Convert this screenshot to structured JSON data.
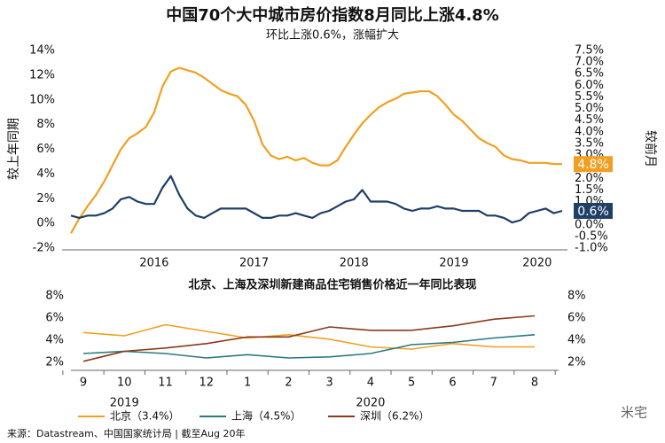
{
  "chart_data": [
    {
      "type": "line",
      "title": "中国70个大中城市房价指数8月同比上涨4.8%",
      "subtitle": "环比上涨0.6%，涨幅扩大",
      "ylabel": "较上年同期",
      "y2label": "较前月",
      "categories": [
        null,
        null,
        null,
        null,
        null,
        null,
        null,
        null,
        null,
        null,
        "2016",
        null,
        null,
        null,
        null,
        null,
        null,
        null,
        null,
        null,
        null,
        null,
        "2017",
        null,
        null,
        null,
        null,
        null,
        null,
        null,
        null,
        null,
        null,
        null,
        "2018",
        null,
        null,
        null,
        null,
        null,
        null,
        null,
        null,
        null,
        null,
        null,
        "2019",
        null,
        null,
        null,
        null,
        null,
        null,
        null,
        null,
        null,
        "2020",
        null,
        null,
        null
      ],
      "series": [
        {
          "name": "较上年同期",
          "color": "#f0a020",
          "axis": "y",
          "values": [
            -0.8,
            0.4,
            1.4,
            2.3,
            3.4,
            4.7,
            6.0,
            6.9,
            7.3,
            7.8,
            9.0,
            11.1,
            12.3,
            12.6,
            12.4,
            12.2,
            11.8,
            11.3,
            10.8,
            10.5,
            10.3,
            9.6,
            8.3,
            6.4,
            5.5,
            5.2,
            5.4,
            5.1,
            5.3,
            4.9,
            4.7,
            4.7,
            5.1,
            6.2,
            7.2,
            8.1,
            8.8,
            9.4,
            9.8,
            10.1,
            10.5,
            10.6,
            10.7,
            10.7,
            10.3,
            9.6,
            8.8,
            8.3,
            7.6,
            6.9,
            6.5,
            6.2,
            5.5,
            5.2,
            5.1,
            4.9,
            4.9,
            4.9,
            4.8,
            4.8
          ],
          "value_labels": [
            null,
            null,
            null,
            null,
            null,
            null,
            null,
            null,
            null,
            null,
            null,
            null,
            null,
            null,
            null,
            null,
            null,
            null,
            null,
            null,
            null,
            null,
            null,
            null,
            null,
            null,
            null,
            null,
            null,
            null,
            null,
            null,
            null,
            null,
            null,
            null,
            null,
            null,
            null,
            null,
            null,
            null,
            null,
            null,
            null,
            null,
            null,
            null,
            null,
            null,
            null,
            null,
            null,
            null,
            null,
            null,
            null,
            null,
            null,
            "4.8%"
          ]
        },
        {
          "name": "较前月",
          "color": "#1f3f66",
          "axis": "y2",
          "values": [
            0.4,
            0.3,
            0.4,
            0.4,
            0.5,
            0.7,
            1.1,
            1.2,
            1.0,
            0.9,
            0.9,
            1.6,
            2.1,
            1.3,
            0.7,
            0.4,
            0.3,
            0.5,
            0.7,
            0.7,
            0.7,
            0.7,
            0.5,
            0.3,
            0.3,
            0.4,
            0.4,
            0.5,
            0.4,
            0.3,
            0.5,
            0.6,
            0.8,
            1.0,
            1.1,
            1.5,
            1.0,
            1.0,
            1.0,
            0.9,
            0.7,
            0.6,
            0.7,
            0.7,
            0.8,
            0.7,
            0.7,
            0.6,
            0.6,
            0.6,
            0.4,
            0.4,
            0.3,
            0.1,
            0.2,
            0.5,
            0.6,
            0.7,
            0.5,
            0.6
          ],
          "value_labels": [
            null,
            null,
            null,
            null,
            null,
            null,
            null,
            null,
            null,
            null,
            null,
            null,
            null,
            null,
            null,
            null,
            null,
            null,
            null,
            null,
            null,
            null,
            null,
            null,
            null,
            null,
            null,
            null,
            null,
            null,
            null,
            null,
            null,
            null,
            null,
            null,
            null,
            null,
            null,
            null,
            null,
            null,
            null,
            null,
            null,
            null,
            null,
            null,
            null,
            null,
            null,
            null,
            null,
            null,
            null,
            null,
            null,
            null,
            null,
            "0.6%"
          ]
        }
      ],
      "ylim": [
        -2,
        14
      ],
      "yticks": [
        {
          "value": -2,
          "label": "-2%"
        },
        {
          "value": 0,
          "label": "0%"
        },
        {
          "value": 2,
          "label": "2%"
        },
        {
          "value": 4,
          "label": "4%"
        },
        {
          "value": 6,
          "label": "6%"
        },
        {
          "value": 8,
          "label": "8%"
        },
        {
          "value": 10,
          "label": "10%"
        },
        {
          "value": 12,
          "label": "12%"
        },
        {
          "value": 14,
          "label": "14%"
        }
      ],
      "y2lim": [
        -1,
        7.5
      ],
      "y2ticks": [
        {
          "value": -1,
          "label": "-1.0%"
        },
        {
          "value": -0.5,
          "label": "-0.5%"
        },
        {
          "value": 0,
          "label": "0.0%"
        },
        {
          "value": 0.5,
          "label": "0.5%"
        },
        {
          "value": 1,
          "label": "1.0%"
        },
        {
          "value": 1.5,
          "label": "1.5%"
        },
        {
          "value": 2,
          "label": "2.0%"
        },
        {
          "value": 2.5,
          "label": "2.5%"
        },
        {
          "value": 3,
          "label": "3.0%"
        },
        {
          "value": 3.5,
          "label": "3.5%"
        },
        {
          "value": 4,
          "label": "4.0%"
        },
        {
          "value": 4.5,
          "label": "4.5%"
        },
        {
          "value": 5,
          "label": "5.0%"
        },
        {
          "value": 5.5,
          "label": "5.5%"
        },
        {
          "value": 6,
          "label": "6.0%"
        },
        {
          "value": 6.5,
          "label": "6.5%"
        },
        {
          "value": 7,
          "label": "7.0%"
        },
        {
          "value": 7.5,
          "label": "7.5%"
        }
      ],
      "grid": false
    },
    {
      "type": "line",
      "title": "北京、上海及深圳新建商品住宅销售价格近一年同比表现",
      "categories": [
        "9",
        "10",
        "11",
        "12",
        "1",
        "2",
        "3",
        "4",
        "5",
        "6",
        "7",
        "8"
      ],
      "years": [
        "2019",
        "2020"
      ],
      "series": [
        {
          "name": "北京（3.4%）",
          "color": "#f0a020",
          "axis": "y",
          "values": [
            4.7,
            4.4,
            5.4,
            4.8,
            4.2,
            4.5,
            4.1,
            3.4,
            3.2,
            3.7,
            3.4,
            3.4
          ]
        },
        {
          "name": "上海（4.5%）",
          "color": "#2a7a80",
          "axis": "y",
          "values": [
            2.8,
            3.0,
            2.8,
            2.4,
            2.7,
            2.4,
            2.5,
            2.8,
            3.6,
            3.8,
            4.2,
            4.5
          ]
        },
        {
          "name": "深圳（6.2%）",
          "color": "#8b3a1a",
          "axis": "y",
          "values": [
            2.1,
            3.0,
            3.3,
            3.7,
            4.3,
            4.3,
            5.2,
            4.9,
            4.9,
            5.3,
            5.9,
            6.2
          ]
        }
      ],
      "ylim": [
        2,
        8
      ],
      "yticks": [
        {
          "value": 2,
          "label": "2%"
        },
        {
          "value": 4,
          "label": "4%"
        },
        {
          "value": 6,
          "label": "6%"
        },
        {
          "value": 8,
          "label": "8%"
        }
      ],
      "y2lim": [
        2,
        8
      ],
      "y2ticks": [
        {
          "value": 2,
          "label": "2%"
        },
        {
          "value": 4,
          "label": "4%"
        },
        {
          "value": 6,
          "label": "6%"
        },
        {
          "value": 8,
          "label": "8%"
        }
      ],
      "grid": false
    }
  ],
  "source": "来源：Datastream、中国国家统计局 | 截至Aug 20年",
  "watermark": "米宅"
}
